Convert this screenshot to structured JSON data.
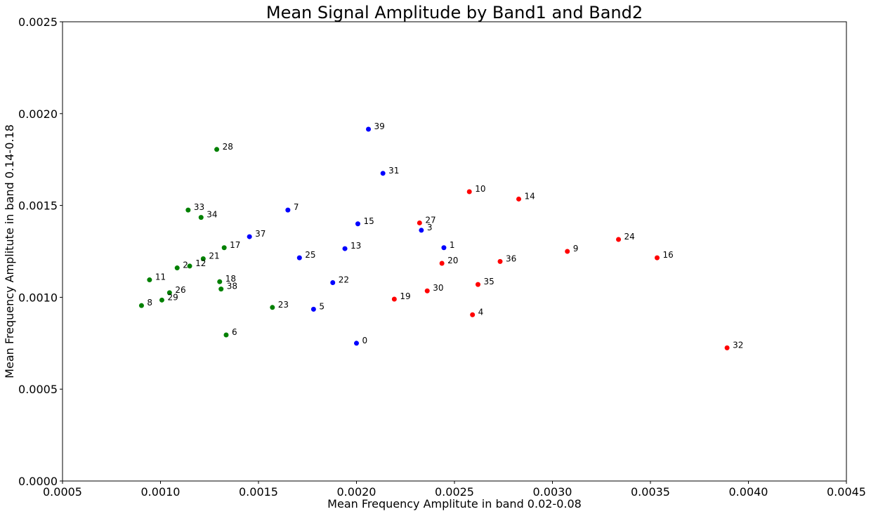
{
  "chart_data": {
    "type": "scatter",
    "title": "Mean Signal Amplitude by Band1 and Band2",
    "xlabel": "Mean Frequency Amplitute in band 0.02-0.08",
    "ylabel": "Mean Frequency Amplitute in band 0.14-0.18",
    "xlim": [
      0.0005,
      0.0045
    ],
    "ylim": [
      0.0,
      0.0025
    ],
    "x_ticks": [
      "0.0005",
      "0.0010",
      "0.0015",
      "0.0020",
      "0.0025",
      "0.0030",
      "0.0035",
      "0.0040",
      "0.0045"
    ],
    "y_ticks": [
      "0.0000",
      "0.0005",
      "0.0010",
      "0.0015",
      "0.0020",
      "0.0025"
    ],
    "grid": false,
    "colors": {
      "green": "#008000",
      "blue": "#0000ff",
      "red": "#ff0000"
    },
    "points": [
      {
        "label": "0",
        "x": 0.002,
        "y": 0.00075,
        "color": "blue"
      },
      {
        "label": "1",
        "x": 0.002446,
        "y": 0.00127,
        "color": "blue"
      },
      {
        "label": "2",
        "x": 0.001085,
        "y": 0.00116,
        "color": "green"
      },
      {
        "label": "3",
        "x": 0.002331,
        "y": 0.001365,
        "color": "blue"
      },
      {
        "label": "4",
        "x": 0.002592,
        "y": 0.000905,
        "color": "red"
      },
      {
        "label": "5",
        "x": 0.001781,
        "y": 0.000935,
        "color": "blue"
      },
      {
        "label": "6",
        "x": 0.001335,
        "y": 0.000795,
        "color": "green"
      },
      {
        "label": "7",
        "x": 0.00165,
        "y": 0.001475,
        "color": "blue"
      },
      {
        "label": "8",
        "x": 0.000903,
        "y": 0.000955,
        "color": "green"
      },
      {
        "label": "9",
        "x": 0.003076,
        "y": 0.00125,
        "color": "red"
      },
      {
        "label": "10",
        "x": 0.002576,
        "y": 0.001575,
        "color": "red"
      },
      {
        "label": "11",
        "x": 0.000944,
        "y": 0.001095,
        "color": "green"
      },
      {
        "label": "12",
        "x": 0.001149,
        "y": 0.00117,
        "color": "green"
      },
      {
        "label": "13",
        "x": 0.001941,
        "y": 0.001265,
        "color": "blue"
      },
      {
        "label": "14",
        "x": 0.002828,
        "y": 0.001535,
        "color": "red"
      },
      {
        "label": "15",
        "x": 0.002007,
        "y": 0.0014,
        "color": "blue"
      },
      {
        "label": "16",
        "x": 0.003534,
        "y": 0.001215,
        "color": "red"
      },
      {
        "label": "17",
        "x": 0.001325,
        "y": 0.00127,
        "color": "green"
      },
      {
        "label": "18",
        "x": 0.001302,
        "y": 0.001085,
        "color": "green"
      },
      {
        "label": "19",
        "x": 0.002193,
        "y": 0.00099,
        "color": "red"
      },
      {
        "label": "20",
        "x": 0.002436,
        "y": 0.001185,
        "color": "red"
      },
      {
        "label": "21",
        "x": 0.001218,
        "y": 0.00121,
        "color": "green"
      },
      {
        "label": "22",
        "x": 0.001879,
        "y": 0.00108,
        "color": "blue"
      },
      {
        "label": "23",
        "x": 0.001571,
        "y": 0.000945,
        "color": "green"
      },
      {
        "label": "24",
        "x": 0.003337,
        "y": 0.001315,
        "color": "red"
      },
      {
        "label": "25",
        "x": 0.001709,
        "y": 0.001215,
        "color": "blue"
      },
      {
        "label": "26",
        "x": 0.001046,
        "y": 0.001025,
        "color": "green"
      },
      {
        "label": "27",
        "x": 0.002322,
        "y": 0.001405,
        "color": "red"
      },
      {
        "label": "28",
        "x": 0.001287,
        "y": 0.001805,
        "color": "green"
      },
      {
        "label": "29",
        "x": 0.001007,
        "y": 0.000985,
        "color": "green"
      },
      {
        "label": "30",
        "x": 0.002361,
        "y": 0.001035,
        "color": "red"
      },
      {
        "label": "31",
        "x": 0.002135,
        "y": 0.001675,
        "color": "blue"
      },
      {
        "label": "32",
        "x": 0.003891,
        "y": 0.000725,
        "color": "red"
      },
      {
        "label": "33",
        "x": 0.001141,
        "y": 0.001475,
        "color": "green"
      },
      {
        "label": "34",
        "x": 0.001207,
        "y": 0.001435,
        "color": "green"
      },
      {
        "label": "35",
        "x": 0.00262,
        "y": 0.00107,
        "color": "red"
      },
      {
        "label": "36",
        "x": 0.002733,
        "y": 0.001195,
        "color": "red"
      },
      {
        "label": "37",
        "x": 0.001454,
        "y": 0.00133,
        "color": "blue"
      },
      {
        "label": "38",
        "x": 0.001309,
        "y": 0.001045,
        "color": "green"
      },
      {
        "label": "39",
        "x": 0.002061,
        "y": 0.001915,
        "color": "blue"
      }
    ]
  }
}
